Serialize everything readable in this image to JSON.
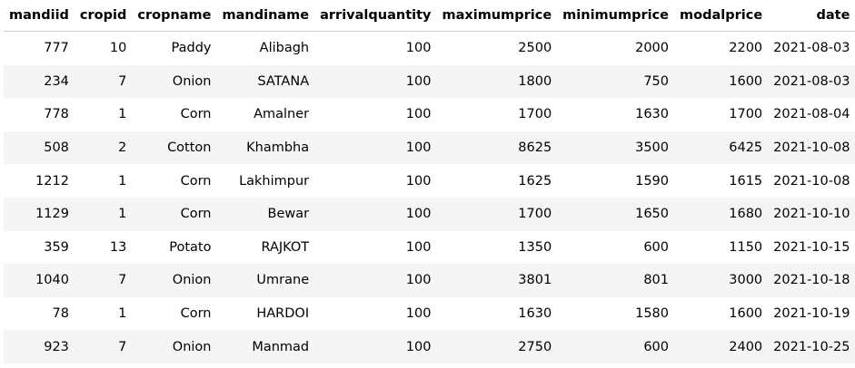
{
  "table": {
    "columns": [
      "mandiid",
      "cropid",
      "cropname",
      "mandiname",
      "arrivalquantity",
      "maximumprice",
      "minimumprice",
      "modalprice",
      "date"
    ],
    "rows": [
      [
        "777",
        "10",
        "Paddy",
        "Alibagh",
        "100",
        "2500",
        "2000",
        "2200",
        "2021-08-03"
      ],
      [
        "234",
        "7",
        "Onion",
        "SATANA",
        "100",
        "1800",
        "750",
        "1600",
        "2021-08-03"
      ],
      [
        "778",
        "1",
        "Corn",
        "Amalner",
        "100",
        "1700",
        "1630",
        "1700",
        "2021-08-04"
      ],
      [
        "508",
        "2",
        "Cotton",
        "Khambha",
        "100",
        "8625",
        "3500",
        "6425",
        "2021-10-08"
      ],
      [
        "1212",
        "1",
        "Corn",
        "Lakhimpur",
        "100",
        "1625",
        "1590",
        "1615",
        "2021-10-08"
      ],
      [
        "1129",
        "1",
        "Corn",
        "Bewar",
        "100",
        "1700",
        "1650",
        "1680",
        "2021-10-10"
      ],
      [
        "359",
        "13",
        "Potato",
        "RAJKOT",
        "100",
        "1350",
        "600",
        "1150",
        "2021-10-15"
      ],
      [
        "1040",
        "7",
        "Onion",
        "Umrane",
        "100",
        "3801",
        "801",
        "3000",
        "2021-10-18"
      ],
      [
        "78",
        "1",
        "Corn",
        "HARDOI",
        "100",
        "1630",
        "1580",
        "1600",
        "2021-10-19"
      ],
      [
        "923",
        "7",
        "Onion",
        "Manmad",
        "100",
        "2750",
        "600",
        "2400",
        "2021-10-25"
      ]
    ]
  }
}
